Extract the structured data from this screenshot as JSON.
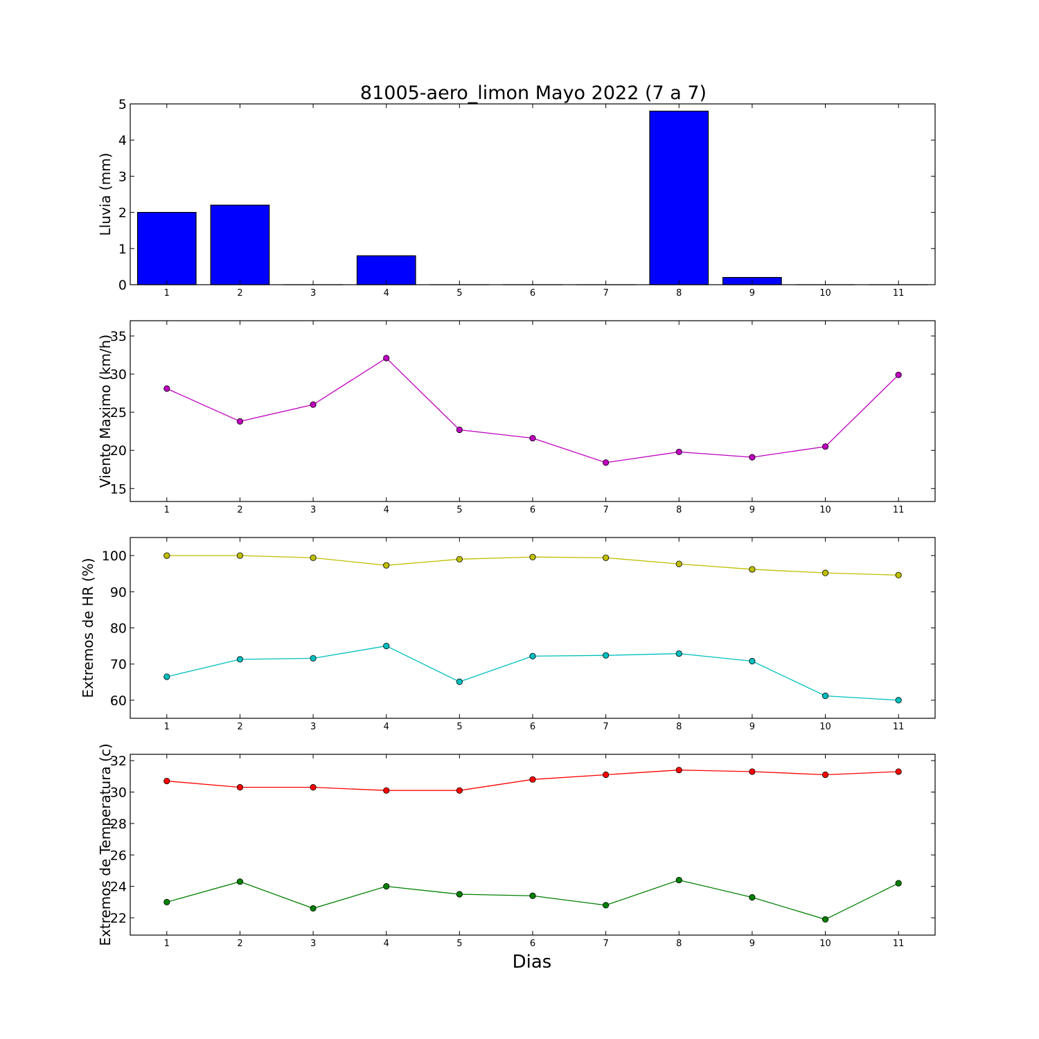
{
  "chart_data": [
    {
      "type": "bar",
      "title": "81005-aero_limon Mayo 2022  (7 a 7)",
      "xlabel": "",
      "ylabel": "Lluvia (mm)",
      "categories": [
        "1",
        "2",
        "3",
        "4",
        "5",
        "6",
        "7",
        "8",
        "9",
        "10",
        "11"
      ],
      "x": [
        1,
        2,
        3,
        4,
        5,
        6,
        7,
        8,
        9,
        10,
        11
      ],
      "xlim": [
        0.5,
        11.5
      ],
      "ylim": [
        0,
        5
      ],
      "yticks": [
        0,
        1,
        2,
        3,
        4,
        5
      ],
      "grid": false,
      "series": [
        {
          "values": [
            2.0,
            2.2,
            0,
            0.8,
            0,
            0,
            0,
            4.8,
            0.2,
            0,
            0
          ],
          "color": "#0000ff"
        }
      ]
    },
    {
      "type": "line",
      "xlabel": "",
      "ylabel": "Viento Maximo (km/h)",
      "x": [
        1,
        2,
        3,
        4,
        5,
        6,
        7,
        8,
        9,
        10,
        11
      ],
      "xlim": [
        0.5,
        11.5
      ],
      "ylim": [
        13.3,
        37
      ],
      "yticks": [
        15,
        20,
        25,
        30,
        35
      ],
      "grid": false,
      "series": [
        {
          "values": [
            28.1,
            23.8,
            26.0,
            32.1,
            22.7,
            21.6,
            18.4,
            19.8,
            19.1,
            20.5,
            29.9
          ],
          "color": "#bf00bf"
        }
      ]
    },
    {
      "type": "line",
      "xlabel": "",
      "ylabel": "Extremos de HR (%)",
      "x": [
        1,
        2,
        3,
        4,
        5,
        6,
        7,
        8,
        9,
        10,
        11
      ],
      "xlim": [
        0.5,
        11.5
      ],
      "ylim": [
        55,
        105
      ],
      "yticks": [
        60,
        70,
        80,
        90,
        100
      ],
      "grid": false,
      "series": [
        {
          "values": [
            100.0,
            100.0,
            99.4,
            97.3,
            99.0,
            99.6,
            99.4,
            97.7,
            96.2,
            95.2,
            94.6
          ],
          "color": "#bfbf00"
        },
        {
          "values": [
            66.5,
            71.3,
            71.6,
            75.0,
            65.1,
            72.2,
            72.4,
            72.9,
            70.8,
            61.2,
            60.0
          ],
          "color": "#00bfbf"
        }
      ]
    },
    {
      "type": "line",
      "xlabel": "Dias",
      "ylabel": "Extremos de Temperatura (c)",
      "x": [
        1,
        2,
        3,
        4,
        5,
        6,
        7,
        8,
        9,
        10,
        11
      ],
      "xlim": [
        0.5,
        11.5
      ],
      "ylim": [
        20.9,
        32.4
      ],
      "yticks": [
        22,
        24,
        26,
        28,
        30,
        32
      ],
      "grid": false,
      "series": [
        {
          "values": [
            30.7,
            30.3,
            30.3,
            30.1,
            30.1,
            30.8,
            31.1,
            31.4,
            31.3,
            31.1,
            31.3
          ],
          "color": "#ff0000"
        },
        {
          "values": [
            23.0,
            24.3,
            22.6,
            24.0,
            23.5,
            23.4,
            22.8,
            24.4,
            23.3,
            21.9,
            24.2
          ],
          "color": "#008000"
        }
      ]
    }
  ]
}
